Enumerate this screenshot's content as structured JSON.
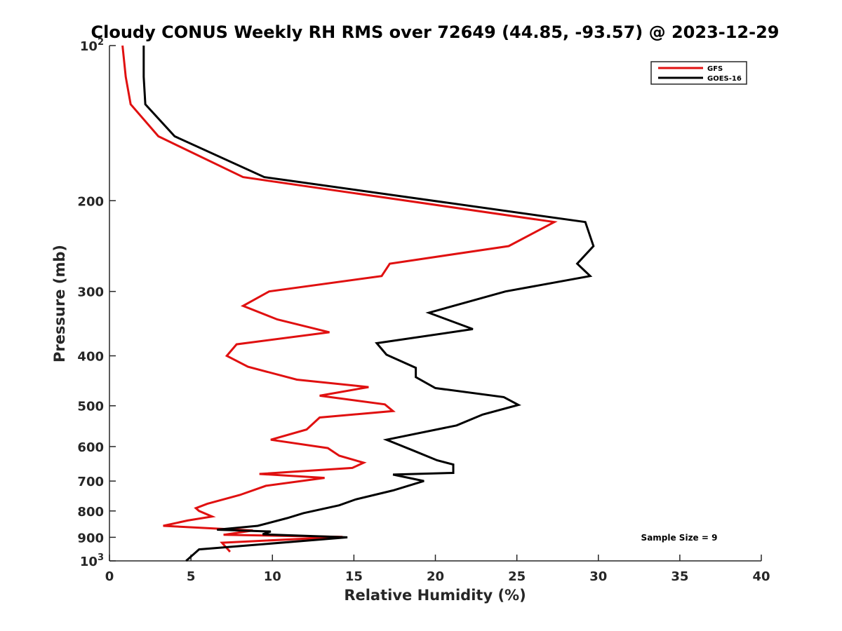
{
  "chart_data": {
    "type": "line",
    "title": "Cloudy CONUS Weekly RH RMS over 72649 (44.85, -93.57) @ 2023-12-29",
    "xlabel": "Relative Humidity (%)",
    "ylabel": "Pressure (mb)",
    "xlim": [
      0,
      40
    ],
    "ylim": [
      100,
      1000
    ],
    "y_scale": "log",
    "y_reversed": true,
    "grid": false,
    "legend_position": "top-right",
    "x_ticks": [
      "0",
      "5",
      "10",
      "15",
      "20",
      "25",
      "30",
      "35",
      "40"
    ],
    "y_ticks": [
      {
        "value": 100,
        "base": "10",
        "exp": "2"
      },
      {
        "value": 200,
        "label": "200"
      },
      {
        "value": 300,
        "label": "300"
      },
      {
        "value": 400,
        "label": "400"
      },
      {
        "value": 500,
        "label": "500"
      },
      {
        "value": 600,
        "label": "600"
      },
      {
        "value": 700,
        "label": "700"
      },
      {
        "value": 800,
        "label": "800"
      },
      {
        "value": 900,
        "label": "900"
      },
      {
        "value": 1000,
        "base": "10",
        "exp": "3"
      }
    ],
    "series": [
      {
        "name": "GFS",
        "color": "#e01010",
        "points": [
          [
            0.8,
            100
          ],
          [
            1.0,
            115
          ],
          [
            1.3,
            130
          ],
          [
            3.0,
            150
          ],
          [
            8.2,
            180
          ],
          [
            27.3,
            220
          ],
          [
            24.5,
            245
          ],
          [
            17.2,
            265
          ],
          [
            16.7,
            280
          ],
          [
            9.8,
            300
          ],
          [
            8.2,
            320
          ],
          [
            10.3,
            340
          ],
          [
            13.5,
            360
          ],
          [
            7.8,
            380
          ],
          [
            7.2,
            400
          ],
          [
            8.5,
            420
          ],
          [
            11.5,
            445
          ],
          [
            15.9,
            460
          ],
          [
            12.9,
            478
          ],
          [
            16.9,
            497
          ],
          [
            17.4,
            512
          ],
          [
            12.9,
            527
          ],
          [
            12.1,
            556
          ],
          [
            9.9,
            582
          ],
          [
            13.4,
            604
          ],
          [
            14.1,
            625
          ],
          [
            15.6,
            645
          ],
          [
            14.9,
            660
          ],
          [
            9.2,
            678
          ],
          [
            13.2,
            690
          ],
          [
            9.6,
            715
          ],
          [
            8.0,
            745
          ],
          [
            6.0,
            775
          ],
          [
            5.3,
            790
          ],
          [
            5.5,
            800
          ],
          [
            6.3,
            820
          ],
          [
            4.8,
            835
          ],
          [
            3.3,
            855
          ],
          [
            8.8,
            873
          ],
          [
            7.0,
            890
          ],
          [
            14.3,
            898
          ],
          [
            6.9,
            922
          ],
          [
            7.4,
            960
          ]
        ]
      },
      {
        "name": "GOES-16",
        "color": "#000000",
        "points": [
          [
            2.1,
            100
          ],
          [
            2.1,
            115
          ],
          [
            2.2,
            130
          ],
          [
            4.0,
            150
          ],
          [
            9.5,
            180
          ],
          [
            29.2,
            220
          ],
          [
            29.7,
            245
          ],
          [
            28.7,
            265
          ],
          [
            29.5,
            280
          ],
          [
            24.3,
            300
          ],
          [
            19.6,
            330
          ],
          [
            22.3,
            355
          ],
          [
            16.4,
            378
          ],
          [
            17.0,
            398
          ],
          [
            18.8,
            422
          ],
          [
            18.8,
            440
          ],
          [
            20.0,
            462
          ],
          [
            24.2,
            481
          ],
          [
            25.1,
            498
          ],
          [
            22.9,
            520
          ],
          [
            21.3,
            546
          ],
          [
            17.0,
            582
          ],
          [
            18.6,
            610
          ],
          [
            20.1,
            638
          ],
          [
            21.1,
            650
          ],
          [
            21.1,
            675
          ],
          [
            17.4,
            680
          ],
          [
            19.3,
            700
          ],
          [
            17.4,
            730
          ],
          [
            15.1,
            760
          ],
          [
            14.1,
            780
          ],
          [
            11.9,
            808
          ],
          [
            10.9,
            826
          ],
          [
            9.1,
            855
          ],
          [
            6.6,
            870
          ],
          [
            9.9,
            877
          ],
          [
            9.4,
            888
          ],
          [
            14.6,
            900
          ],
          [
            5.5,
            950
          ],
          [
            4.7,
            1000
          ]
        ]
      }
    ],
    "annotation": "Sample Size = 9"
  }
}
